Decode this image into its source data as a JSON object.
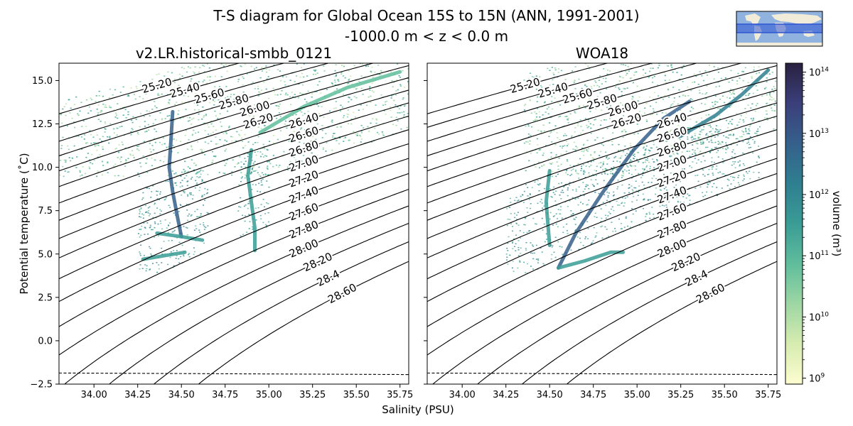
{
  "figure": {
    "title_line1": "T-S diagram for Global Ocean 15S to 15N (ANN, 1991-2001)",
    "title_line2": "-1000.0 m < z < 0.0 m",
    "xlabel": "Salinity (PSU)",
    "ylabel": "Potential temperature (˚C)",
    "colorbar_label": "volume (m³)"
  },
  "colors": {
    "contour": "#000000",
    "freezing_line": "#000000",
    "colormap": [
      "#fdfdd0",
      "#d7ecb0",
      "#9dd6a4",
      "#5fbd9c",
      "#3a9c95",
      "#2f7f90",
      "#35608b",
      "#3b3f7a",
      "#2a2140"
    ],
    "map_ocean": "#8fb2df",
    "map_land": "#f1ecd9",
    "map_band": "#2f55d4"
  },
  "chart_data": [
    {
      "type": "heatmap",
      "title": "v2.LR.historical-smbb_0121",
      "xlabel": "Salinity (PSU)",
      "ylabel": "Potential temperature (˚C)",
      "xlim": [
        33.8,
        35.8
      ],
      "ylim": [
        -2.5,
        16.0
      ],
      "xticks": [
        34.0,
        34.25,
        34.5,
        34.75,
        35.0,
        35.25,
        35.5,
        35.75
      ],
      "xtick_labels": [
        "34.00",
        "34.25",
        "34.50",
        "34.75",
        "35.00",
        "35.25",
        "35.50",
        "35.75"
      ],
      "yticks": [
        -2.5,
        0.0,
        2.5,
        5.0,
        7.5,
        10.0,
        12.5,
        15.0
      ],
      "ytick_labels": [
        "−2.5",
        "0.0",
        "2.5",
        "5.0",
        "7.5",
        "10.0",
        "12.5",
        "15.0"
      ],
      "density_contours": [
        25.2,
        25.4,
        25.6,
        25.8,
        26.0,
        26.2,
        26.4,
        26.6,
        26.8,
        27.0,
        27.2,
        27.4,
        27.6,
        27.8,
        28.0,
        28.2,
        28.4,
        28.6
      ],
      "contour_labels": [
        "25.20",
        "25.40",
        "25.60",
        "25.80",
        "26.00",
        "26.20",
        "26.40",
        "26.60",
        "26.80",
        "27.00",
        "27.20",
        "27.40",
        "27.60",
        "27.80",
        "28.00",
        "28.20",
        "28.4",
        "28.60"
      ],
      "freezing_line": [
        [
          33.8,
          -1.86
        ],
        [
          35.8,
          -1.95
        ]
      ],
      "volume_features": [
        {
          "path": [
            [
              34.45,
              13.2
            ],
            [
              34.44,
              11.5
            ],
            [
              34.43,
              10.0
            ],
            [
              34.45,
              8.6
            ],
            [
              34.48,
              7.0
            ],
            [
              34.5,
              6.0
            ]
          ],
          "level": 6
        },
        {
          "path": [
            [
              34.36,
              6.2
            ],
            [
              34.5,
              6.0
            ],
            [
              34.62,
              5.8
            ]
          ],
          "level": 4
        },
        {
          "path": [
            [
              34.28,
              4.7
            ],
            [
              34.4,
              4.9
            ],
            [
              34.52,
              5.1
            ]
          ],
          "level": 4
        },
        {
          "path": [
            [
              34.9,
              11.0
            ],
            [
              34.88,
              9.5
            ],
            [
              34.9,
              8.0
            ],
            [
              34.92,
              6.5
            ],
            [
              34.92,
              5.2
            ]
          ],
          "level": 4
        },
        {
          "path": [
            [
              34.95,
              12.0
            ],
            [
              35.2,
              13.5
            ],
            [
              35.45,
              14.6
            ],
            [
              35.75,
              15.5
            ]
          ],
          "level": 3
        }
      ]
    },
    {
      "type": "heatmap",
      "title": "WOA18",
      "xlabel": "Salinity (PSU)",
      "xlim": [
        33.8,
        35.8
      ],
      "ylim": [
        -2.5,
        16.0
      ],
      "xticks": [
        34.0,
        34.25,
        34.5,
        34.75,
        35.0,
        35.25,
        35.5,
        35.75
      ],
      "xtick_labels": [
        "34.00",
        "34.25",
        "34.50",
        "34.75",
        "35.00",
        "35.25",
        "35.50",
        "35.75"
      ],
      "yticks": [
        -2.5,
        0.0,
        2.5,
        5.0,
        7.5,
        10.0,
        12.5,
        15.0
      ],
      "density_contours": [
        25.2,
        25.4,
        25.6,
        25.8,
        26.0,
        26.2,
        26.4,
        26.6,
        26.8,
        27.0,
        27.2,
        27.4,
        27.6,
        27.8,
        28.0,
        28.2,
        28.4,
        28.6
      ],
      "contour_labels": [
        "25.20",
        "25.40",
        "25.60",
        "25.80",
        "26.00",
        "26.20",
        "26.40",
        "26.60",
        "26.80",
        "27.00",
        "27.20",
        "27.40",
        "27.60",
        "27.80",
        "28.00",
        "28.20",
        "28.4",
        "28.60"
      ],
      "freezing_line": [
        [
          33.8,
          -1.86
        ],
        [
          35.8,
          -1.95
        ]
      ],
      "volume_features": [
        {
          "path": [
            [
              34.55,
              4.2
            ],
            [
              34.65,
              6.2
            ],
            [
              34.8,
              8.5
            ],
            [
              34.98,
              11.0
            ],
            [
              35.15,
              12.8
            ],
            [
              35.3,
              13.8
            ]
          ],
          "level": 6
        },
        {
          "path": [
            [
              35.25,
              11.8
            ],
            [
              35.45,
              13.0
            ],
            [
              35.6,
              14.2
            ],
            [
              35.75,
              15.6
            ]
          ],
          "level": 5
        },
        {
          "path": [
            [
              34.5,
              9.8
            ],
            [
              34.48,
              8.0
            ],
            [
              34.5,
              5.5
            ]
          ],
          "level": 4
        },
        {
          "path": [
            [
              34.55,
              4.2
            ],
            [
              34.7,
              4.6
            ],
            [
              34.85,
              5.1
            ],
            [
              34.92,
              5.1
            ]
          ],
          "level": 4
        }
      ]
    }
  ],
  "colorbar": {
    "scale": "log",
    "range": [
      800000000,
      140000000000000
    ],
    "tick_values": [
      1000000000,
      10000000000,
      100000000000,
      1000000000000,
      10000000000000,
      100000000000000
    ],
    "ticks": [
      {
        "base": "10",
        "exp": "9"
      },
      {
        "base": "10",
        "exp": "10"
      },
      {
        "base": "10",
        "exp": "11"
      },
      {
        "base": "10",
        "exp": "12"
      },
      {
        "base": "10",
        "exp": "13"
      },
      {
        "base": "10",
        "exp": "14"
      }
    ]
  }
}
